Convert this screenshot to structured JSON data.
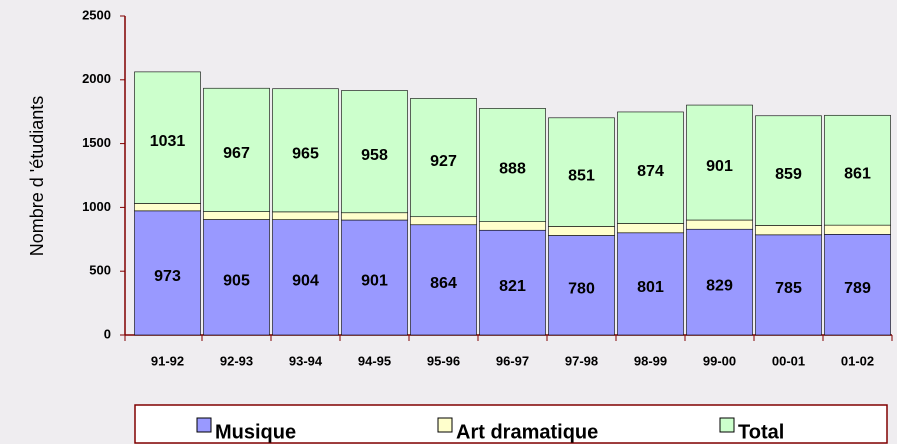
{
  "chart_data": {
    "type": "stacked_bar",
    "y_label": "Nombre d 'étudiants",
    "categories": [
      "91-92",
      "92-93",
      "93-94",
      "94-95",
      "95-96",
      "96-97",
      "97-98",
      "98-99",
      "99-00",
      "00-01",
      "01-02"
    ],
    "series": [
      {
        "name": "Musique",
        "color": "#9999ff",
        "values": [
          973,
          905,
          904,
          901,
          864,
          821,
          780,
          801,
          829,
          785,
          789
        ]
      },
      {
        "name": "Art dramatique",
        "color": "#ffffcc",
        "values": [
          58,
          62,
          61,
          57,
          63,
          67,
          71,
          73,
          72,
          74,
          72
        ]
      },
      {
        "name": "Total",
        "color": "#ccffcc",
        "values": [
          1031,
          967,
          965,
          958,
          927,
          888,
          851,
          874,
          901,
          859,
          861
        ]
      }
    ],
    "ylim": [
      0,
      2500
    ],
    "yticks": [
      0,
      500,
      1000,
      1500,
      2000,
      2500
    ],
    "legend": "bottom"
  }
}
